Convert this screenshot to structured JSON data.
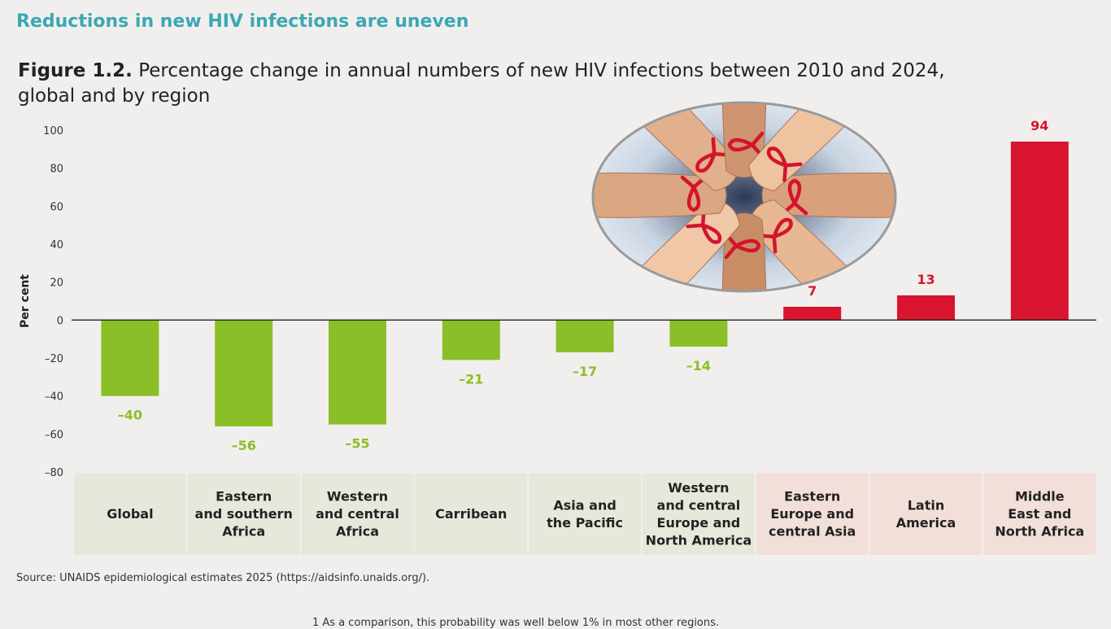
{
  "section_heading": "Reductions in new HIV infections are uneven",
  "figure": {
    "number": "Figure 1.2.",
    "title": "Percentage change in annual numbers of new HIV infections between 2010 and 2024,",
    "title_line2": "global and by region"
  },
  "source": "Source: UNAIDS epidemiological estimates 2025 (https://aidsinfo.unaids.org/).",
  "footnote": "1      As a comparison, this probability was well below 1% in most other regions.",
  "photo": {
    "description_icon": "red-ribbon-hands-icon"
  },
  "colors": {
    "negative_bar": "#8bbf27",
    "positive_bar": "#d9142e",
    "negative_label_bg": "#e7e8dc",
    "positive_label_bg": "#f3dfda",
    "heading": "#3aa8b4"
  },
  "chart_data": {
    "type": "bar",
    "title": "Percentage change in annual numbers of new HIV infections between 2010 and 2024, global and by region",
    "ylabel": "Per cent",
    "xlabel": "",
    "ylim": [
      -80,
      100
    ],
    "yticks": [
      100,
      80,
      60,
      40,
      20,
      0,
      -20,
      -40,
      -60,
      -80
    ],
    "ytick_labels": [
      "100",
      "80",
      "60",
      "40",
      "20",
      "0",
      "–20",
      "–40",
      "–60",
      "–80"
    ],
    "categories": [
      [
        "Global"
      ],
      [
        "Eastern",
        "and southern",
        "Africa"
      ],
      [
        "Western",
        "and central",
        "Africa"
      ],
      [
        "Carribean"
      ],
      [
        "Asia and",
        "the Pacific"
      ],
      [
        "Western",
        "and central",
        "Europe and",
        "North America"
      ],
      [
        "Eastern",
        "Europe and",
        "central Asia"
      ],
      [
        "Latin",
        "America"
      ],
      [
        "Middle",
        "East and",
        "North Africa"
      ]
    ],
    "values": [
      -40,
      -56,
      -55,
      -21,
      -17,
      -14,
      7,
      13,
      94
    ],
    "value_labels": [
      "–40",
      "–56",
      "–55",
      "–21",
      "–17",
      "–14",
      "7",
      "13",
      "94"
    ],
    "legend": "none",
    "grid": false
  }
}
